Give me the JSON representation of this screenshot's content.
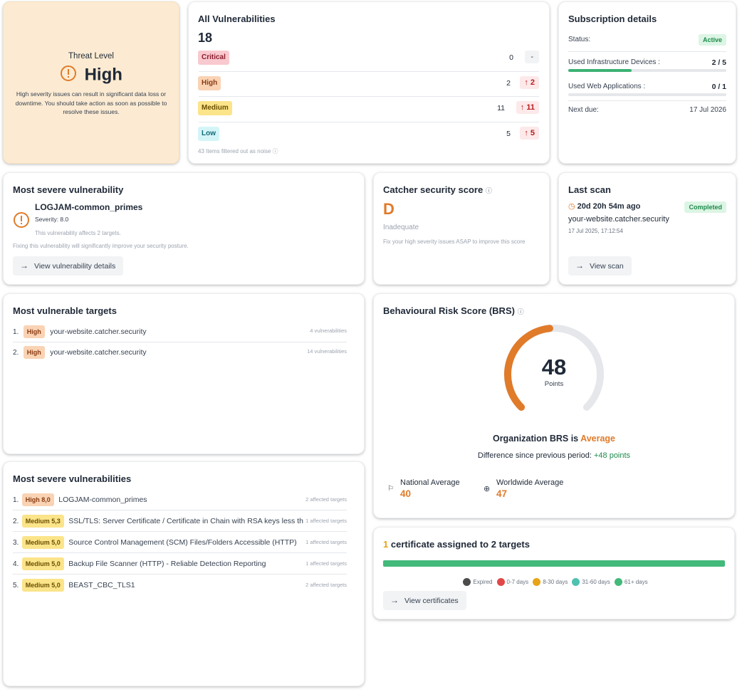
{
  "threat": {
    "title": "Threat Level",
    "level": "High",
    "description": "High severity issues can result in significant data loss or downtime. You should take action as soon as possible to resolve these issues."
  },
  "all_vulns": {
    "title": "All Vulnerabilities",
    "total": "18",
    "rows": [
      {
        "label": "Critical",
        "count": "0",
        "delta": "-"
      },
      {
        "label": "High",
        "count": "2",
        "delta": "2"
      },
      {
        "label": "Medium",
        "count": "11",
        "delta": "11"
      },
      {
        "label": "Low",
        "count": "5",
        "delta": "5"
      }
    ],
    "noise_note": "43 Items filtered out as noise"
  },
  "subscription": {
    "title": "Subscription details",
    "status_label": "Status:",
    "status_value": "Active",
    "infra_label": "Used Infrastructure Devices :",
    "infra_value": "2 / 5",
    "infra_fraction": 0.4,
    "web_label": "Used Web Applications :",
    "web_value": "0 / 1",
    "web_fraction": 0,
    "due_label": "Next due:",
    "due_value": "17 Jul 2026"
  },
  "most_severe": {
    "title": "Most severe vulnerability",
    "name": "LOGJAM-common_primes",
    "severity": "Severity: 8.0",
    "affects": "This vulnerability affects 2 targets.",
    "note": "Fixing this vulnerability will significantly improve your security posture.",
    "button": "View vulnerability details"
  },
  "catcher_score": {
    "title": "Catcher security score",
    "grade": "D",
    "rating": "Inadequate",
    "note": "Fix your high severity issues ASAP to improve this score"
  },
  "last_scan": {
    "title": "Last scan",
    "ago": "20d 20h 54m ago",
    "status": "Completed",
    "target": "your-website.catcher.security",
    "timestamp": "17 Jul 2025, 17:12:54",
    "button": "View scan"
  },
  "vuln_targets": {
    "title": "Most vulnerable targets",
    "rows": [
      {
        "index": "1.",
        "badge": "High",
        "name": "your-website.catcher.security",
        "count": "4 vulnerabilities"
      },
      {
        "index": "2.",
        "badge": "High",
        "name": "your-website.catcher.security",
        "count": "14 vulnerabilities"
      }
    ]
  },
  "brs": {
    "title": "Behavioural Risk Score (BRS)",
    "score": "48",
    "score_value": 48,
    "score_max": 100,
    "points_label": "Points",
    "org_prefix": "Organization BRS is",
    "org_rating": "Average",
    "diff_prefix": "Difference since previous period:",
    "diff_value": "+48 points",
    "national_label": "National Average",
    "national_value": "40",
    "worldwide_label": "Worldwide Average",
    "worldwide_value": "47",
    "accent_color": "#e07b2a"
  },
  "severe_vulns": {
    "title": "Most severe vulnerabilities",
    "rows": [
      {
        "index": "1.",
        "badge": "High 8,0",
        "level": "high",
        "name": "LOGJAM-common_primes",
        "targets": "2 affected targets"
      },
      {
        "index": "2.",
        "badge": "Medium 5,3",
        "level": "med",
        "name": "SSL/TLS: Server Certificate / Certificate in Chain with RSA keys less tha...",
        "targets": "1 affected targets"
      },
      {
        "index": "3.",
        "badge": "Medium 5,0",
        "level": "med",
        "name": "Source Control Management (SCM) Files/Folders Accessible (HTTP)",
        "targets": "1 affected targets"
      },
      {
        "index": "4.",
        "badge": "Medium 5,0",
        "level": "med",
        "name": "Backup File Scanner (HTTP) - Reliable Detection Reporting",
        "targets": "1 affected targets"
      },
      {
        "index": "5.",
        "badge": "Medium 5,0",
        "level": "med",
        "name": "BEAST_CBC_TLS1",
        "targets": "2 affected targets"
      }
    ]
  },
  "certificates": {
    "count": "1",
    "title_suffix": "certificate assigned to 2 targets",
    "legend": [
      {
        "label": "Expired",
        "color": "#4b4b4b"
      },
      {
        "label": "0-7 days",
        "color": "#e04848"
      },
      {
        "label": "8-30 days",
        "color": "#e8a317"
      },
      {
        "label": "31-60 days",
        "color": "#4fc1b0"
      },
      {
        "label": "61+ days",
        "color": "#43b97a"
      }
    ],
    "button": "View certificates"
  }
}
